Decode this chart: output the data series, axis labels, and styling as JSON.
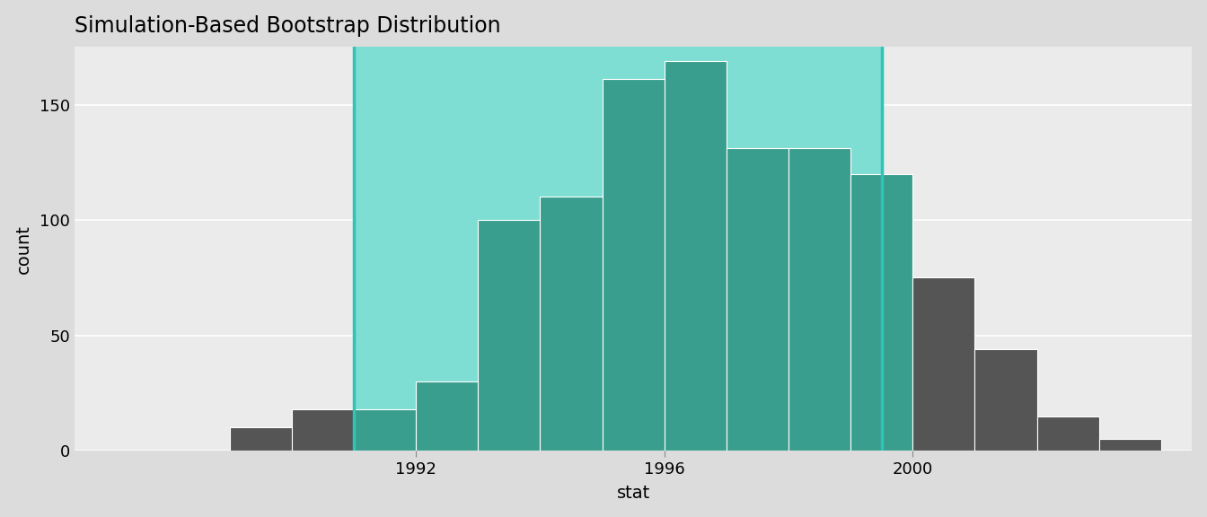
{
  "title": "Simulation-Based Bootstrap Distribution",
  "xlabel": "stat",
  "ylabel": "count",
  "background_color": "#EBEBEB",
  "outer_background": "#DCDCDC",
  "ci_fill_color": "#7FDED3",
  "ci_line_color": "#2EC4B6",
  "bar_color_inside": "#3A9E8E",
  "bar_color_outside": "#555555",
  "ci_lower": 1991.0,
  "ci_upper": 1999.5,
  "bin_edges": [
    1988.0,
    1989.0,
    1990.0,
    1991.0,
    1992.0,
    1993.0,
    1994.0,
    1995.0,
    1996.0,
    1997.0,
    1998.0,
    1999.0,
    2000.0,
    2001.0,
    2002.0,
    2003.0,
    2004.0
  ],
  "counts": [
    0,
    10,
    18,
    18,
    30,
    100,
    110,
    161,
    169,
    131,
    131,
    120,
    75,
    44,
    15,
    5
  ],
  "xlim": [
    1986.5,
    2004.5
  ],
  "ylim": [
    0,
    175
  ],
  "yticks": [
    0,
    50,
    100,
    150
  ],
  "xticks": [
    1992,
    1996,
    2000
  ]
}
